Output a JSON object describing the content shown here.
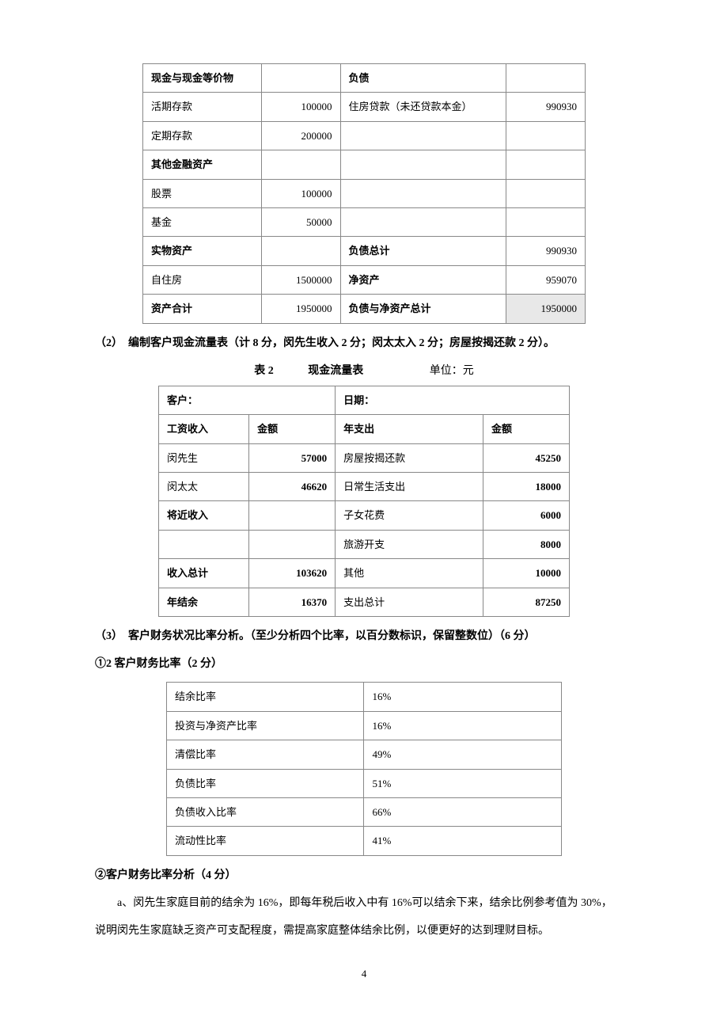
{
  "table1": {
    "rows": [
      {
        "a": "现金与现金等价物",
        "aBold": true,
        "b": "",
        "c": "负债",
        "cBold": true,
        "d": ""
      },
      {
        "a": "活期存款",
        "b": "100000",
        "c": "住房贷款（未还贷款本金）",
        "d": "990930"
      },
      {
        "a": "定期存款",
        "b": "200000",
        "c": "",
        "d": ""
      },
      {
        "a": "其他金融资产",
        "aBold": true,
        "b": "",
        "c": "",
        "d": ""
      },
      {
        "a": "股票",
        "b": "100000",
        "c": "",
        "d": ""
      },
      {
        "a": "基金",
        "b": "50000",
        "c": "",
        "d": ""
      },
      {
        "a": "实物资产",
        "aBold": true,
        "b": "",
        "c": "负债总计",
        "cBold": true,
        "d": "990930"
      },
      {
        "a": "自住房",
        "b": "1500000",
        "c": "净资产",
        "cBold": true,
        "d": "959070"
      },
      {
        "a": "资产合计",
        "aBold": true,
        "b": "1950000",
        "c": "负债与净资产总计",
        "cBold": true,
        "d": "1950000",
        "dHl": true
      }
    ]
  },
  "section2": {
    "title": "（2）　编制客户现金流量表（计 8 分，闵先生收入 2 分；闵太太入 2 分；房屋按揭还款 2 分）。",
    "caption_label": "表 2",
    "caption_title": "现金流量表",
    "caption_unit": "单位：元"
  },
  "table2": {
    "headerRow": {
      "left": "客户：",
      "right": "日期："
    },
    "labelRow": {
      "a": "工资收入",
      "b": "金额",
      "c": "年支出",
      "d": "金额"
    },
    "rows": [
      {
        "a": "闵先生",
        "b": "57000",
        "c": "房屋按揭还款",
        "d": "45250"
      },
      {
        "a": "闵太太",
        "b": "46620",
        "c": "日常生活支出",
        "d": "18000"
      },
      {
        "a": "将近收入",
        "aBold": true,
        "b": "",
        "c": "子女花费",
        "d": "6000"
      },
      {
        "a": "",
        "b": "",
        "c": "旅游开支",
        "d": "8000"
      },
      {
        "a": "收入总计",
        "aBold": true,
        "b": "103620",
        "c": "其他",
        "d": "10000"
      },
      {
        "a": "年结余",
        "aBold": true,
        "b": "16370",
        "c": "支出总计",
        "d": "87250"
      }
    ]
  },
  "section3": {
    "title": "（3）　客户财务状况比率分析。（至少分析四个比率，以百分数标识，保留整数位）（6 分）",
    "subtitle1": "①2 客户财务比率（2 分）"
  },
  "table3": {
    "rows": [
      {
        "a": "结余比率",
        "b": "16%"
      },
      {
        "a": "投资与净资产比率",
        "b": "16%"
      },
      {
        "a": "清偿比率",
        "b": "49%"
      },
      {
        "a": "负债比率",
        "b": "51%"
      },
      {
        "a": "负债收入比率",
        "b": "66%"
      },
      {
        "a": "流动性比率",
        "b": "41%"
      }
    ]
  },
  "section3b": {
    "title": "②客户财务比率分析（4 分）",
    "para1": "a、闵先生家庭目前的结余为 16%，即每年税后收入中有 16%可以结余下来，结余比例参考值为 30%，",
    "para2": "说明闵先生家庭缺乏资产可支配程度，需提高家庭整体结余比例，以便更好的达到理财目标。"
  },
  "pageNumber": "4"
}
